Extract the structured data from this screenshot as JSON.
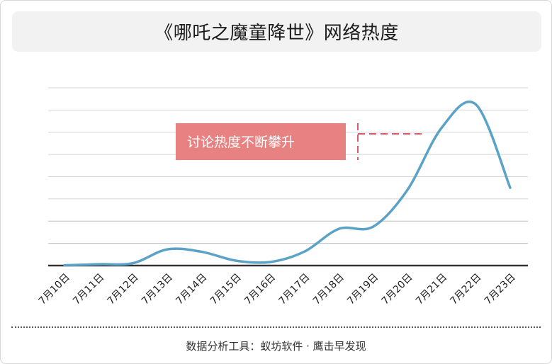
{
  "chart_data": {
    "type": "line",
    "title": "《哪吒之魔童降世》网络热度",
    "categories": [
      "7月10日",
      "7月11日",
      "7月12日",
      "7月13日",
      "7月14日",
      "7月15日",
      "7月16日",
      "7月17日",
      "7月18日",
      "7月19日",
      "7月20日",
      "7月21日",
      "7月22日",
      "7月23日"
    ],
    "series": [
      {
        "values": [
          1,
          6,
          11,
          73,
          62,
          22,
          16,
          63,
          165,
          175,
          340,
          620,
          725,
          350
        ],
        "color": "#5ba3c6"
      }
    ],
    "ylim": [
      0,
      800
    ],
    "y_gridlines": 8,
    "grid": true,
    "annotation": {
      "text": "讨论热度不断攀升",
      "fill": "#e88282",
      "text_color": "#ffffff",
      "dash_color": "#e05a66"
    }
  },
  "footer": {
    "text": "数据分析工具：蚁坊软件 · 鹰击早发现"
  },
  "colors": {
    "grid": "#d4d4d4",
    "axis": "#333333"
  }
}
